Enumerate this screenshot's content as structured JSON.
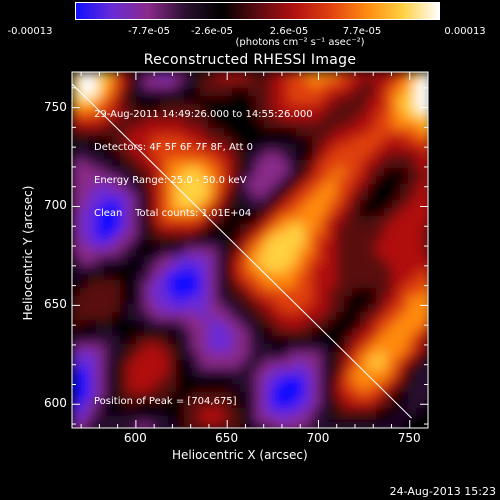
{
  "colorbar": {
    "tick_labels": [
      "-0.00013",
      "-7.7e-05",
      "-2.6e-05",
      "2.6e-05",
      "7.7e-05",
      "0.00013"
    ],
    "unit_label": "(photons cm⁻² s⁻¹ asec⁻²)",
    "colors": [
      "#1010ff",
      "#6a2bd6",
      "#8a2a8a",
      "#2a1030",
      "#000000",
      "#5a0a10",
      "#b01010",
      "#e04010",
      "#ff8a10",
      "#ffd040",
      "#ffffff"
    ]
  },
  "plot": {
    "title": "Reconstructed RHESSI Image",
    "annotations": [
      "29-Aug-2011 14:49:26.000 to 14:55:26.000",
      "Detectors: 4F 5F 6F 7F 8F, Att 0",
      "Energy Range: 25.0 - 50.0 keV",
      "Clean    Total counts: 1.01E+04"
    ],
    "peak_label": "Position of Peak = [704,675]",
    "xlabel": "Heliocentric X (arcsec)",
    "ylabel": "Heliocentric Y (arcsec)",
    "footer": "24-Aug-2013 15:23"
  },
  "chart_data": {
    "type": "heatmap",
    "title": "Reconstructed RHESSI Image",
    "xlabel": "Heliocentric X (arcsec)",
    "ylabel": "Heliocentric Y (arcsec)",
    "xlim": [
      565,
      760
    ],
    "ylim": [
      588,
      768
    ],
    "xticks": [
      600,
      650,
      700,
      750
    ],
    "yticks": [
      600,
      650,
      700,
      750
    ],
    "colorbar_range": [
      -0.00013,
      0.00013
    ],
    "peak_position": [
      704,
      675
    ],
    "limb_line": [
      [
        565,
        762
      ],
      [
        751,
        593
      ]
    ]
  }
}
